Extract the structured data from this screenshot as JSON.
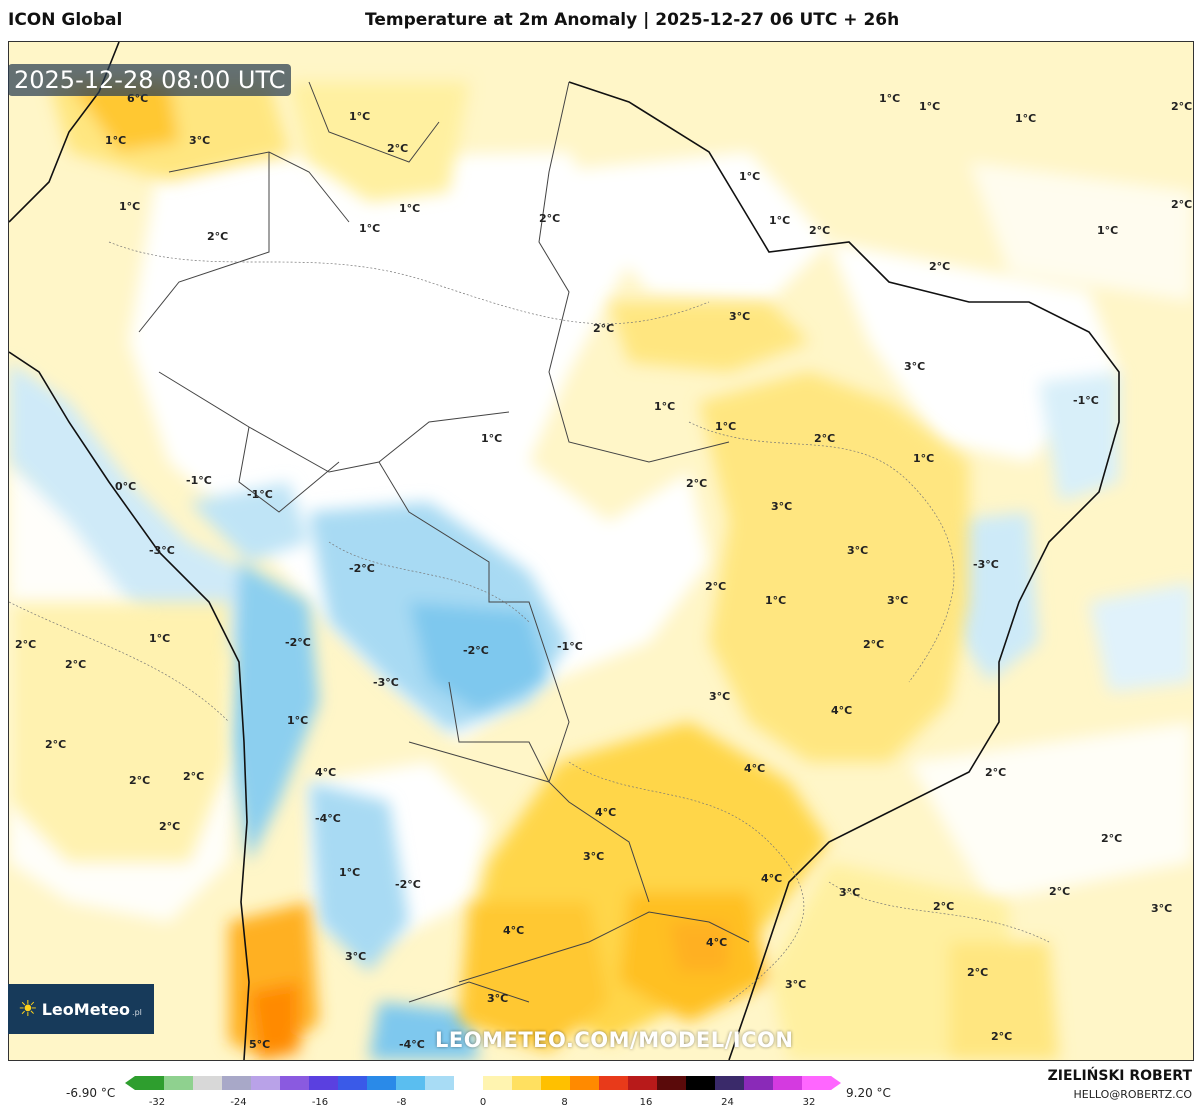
{
  "header": {
    "model": "ICON Global",
    "title": "Temperature at 2m Anomaly | 2025-12-27 06 UTC + 26h"
  },
  "map": {
    "valid_time": "2025-12-28 08:00 UTC",
    "watermark": "LEOMETEO.COM/MODEL/ICON",
    "logo_text": "LeoMeteo",
    "logo_sub": ".pl",
    "labels": [
      {
        "text": "6°C"
      },
      {
        "text": "1°C"
      },
      {
        "text": "3°C"
      },
      {
        "text": "2°C"
      },
      {
        "text": "1°C"
      },
      {
        "text": "1°C"
      },
      {
        "text": "2°C"
      },
      {
        "text": "1°C"
      },
      {
        "text": "2°C"
      },
      {
        "text": "1°C"
      },
      {
        "text": "1°C"
      },
      {
        "text": "1°C"
      },
      {
        "text": "2°C"
      },
      {
        "text": "2°C"
      },
      {
        "text": "1°C"
      },
      {
        "text": "1°C"
      },
      {
        "text": "1°C"
      },
      {
        "text": "2°C"
      },
      {
        "text": "1°C"
      },
      {
        "text": "2°C"
      },
      {
        "text": "3°C"
      },
      {
        "text": "2°C"
      },
      {
        "text": "3°C"
      },
      {
        "text": "-1°C"
      },
      {
        "text": "1°C"
      },
      {
        "text": "1°C"
      },
      {
        "text": "1°C"
      },
      {
        "text": "2°C"
      },
      {
        "text": "2°C"
      },
      {
        "text": "1°C"
      },
      {
        "text": "0°C"
      },
      {
        "text": "-1°C"
      },
      {
        "text": "-1°C"
      },
      {
        "text": "3°C"
      },
      {
        "text": "-3°C"
      },
      {
        "text": "3°C"
      },
      {
        "text": "-3°C"
      },
      {
        "text": "-2°C"
      },
      {
        "text": "2°C"
      },
      {
        "text": "1°C"
      },
      {
        "text": "3°C"
      },
      {
        "text": "-1°C"
      },
      {
        "text": "-2°C"
      },
      {
        "text": "2°C"
      },
      {
        "text": "-2°C"
      },
      {
        "text": "1°C"
      },
      {
        "text": "2°C"
      },
      {
        "text": "2°C"
      },
      {
        "text": "-3°C"
      },
      {
        "text": "3°C"
      },
      {
        "text": "1°C"
      },
      {
        "text": "4°C"
      },
      {
        "text": "2°C"
      },
      {
        "text": "2°C"
      },
      {
        "text": "4°C"
      },
      {
        "text": "2°C"
      },
      {
        "text": "2°C"
      },
      {
        "text": "4°C"
      },
      {
        "text": "-4°C"
      },
      {
        "text": "4°C"
      },
      {
        "text": "3°C"
      },
      {
        "text": "2°C"
      },
      {
        "text": "1°C"
      },
      {
        "text": "-2°C"
      },
      {
        "text": "4°C"
      },
      {
        "text": "3°C"
      },
      {
        "text": "2°C"
      },
      {
        "text": "4°C"
      },
      {
        "text": "4°C"
      },
      {
        "text": "3°C"
      },
      {
        "text": "3°C"
      },
      {
        "text": "2°C"
      },
      {
        "text": "2°C"
      },
      {
        "text": "3°C"
      },
      {
        "text": "3°C"
      },
      {
        "text": "2°C"
      },
      {
        "text": "-4°C"
      },
      {
        "text": "5°C"
      },
      {
        "text": "2°C"
      }
    ]
  },
  "legend": {
    "min_label": "-6.90 °C",
    "max_label": "9.20 °C",
    "ticks": [
      "-32",
      "-24",
      "-16",
      "-8",
      "0",
      "8",
      "16",
      "24",
      "32"
    ],
    "colors": [
      "#2e9e2e",
      "#8fd18f",
      "#d8d8d8",
      "#a8a8c8",
      "#b9a2e8",
      "#8a5ae0",
      "#5a40e0",
      "#3a5ae8",
      "#2a8ae8",
      "#5abef0",
      "#a8dcf5",
      "#ffffff",
      "#fff4b0",
      "#ffe060",
      "#ffc000",
      "#ff8a00",
      "#e83a1a",
      "#b81a1a",
      "#5a0a0a",
      "#000000",
      "#3a2a6a",
      "#8a2ab8",
      "#d43ae0",
      "#ff66ff"
    ]
  },
  "credit": {
    "author": "ZIELIŃSKI ROBERT",
    "email": "HELLO@ROBERTZ.CO"
  }
}
